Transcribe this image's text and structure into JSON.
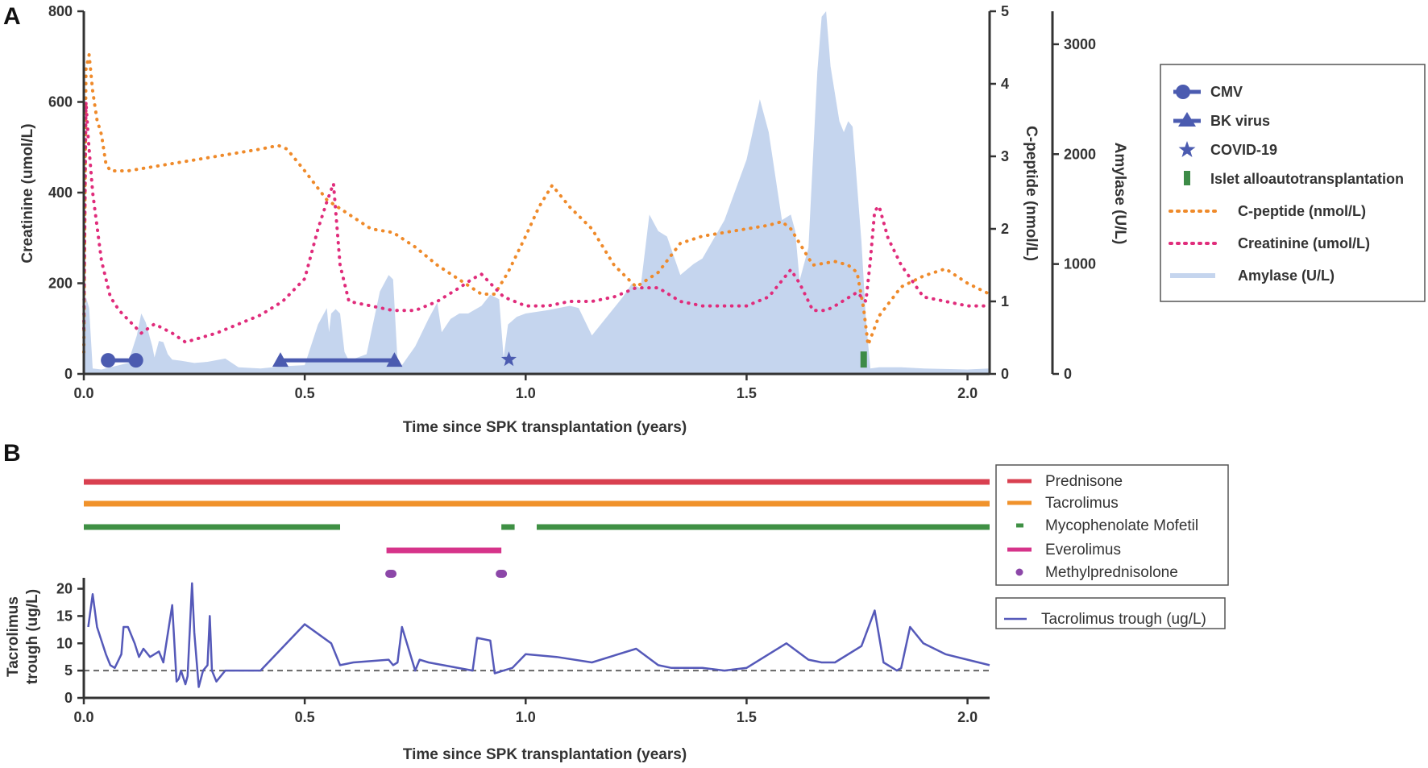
{
  "colors": {
    "amylase": "#c5d5ee",
    "cpeptide": "#ef8a2a",
    "creatinine": "#e02c7b",
    "event_blue": "#4b5bb0",
    "islet": "#3d8b47",
    "prednisone": "#d94050",
    "tacrolimus": "#f0922b",
    "mmf": "#3f9044",
    "everolimus": "#d6338a",
    "methylpred": "#8c47a8",
    "trough": "#5559b9",
    "threshold": "#666666"
  },
  "panel_a": {
    "label": "A",
    "xlabel": "Time since SPK transplantation (years)",
    "ylabel_left": "Creatinine (umol/L)",
    "ylabel_right1": "C-peptide (nmol/L)",
    "ylabel_right2": "Amylase (U/L)",
    "x_ticks": [
      "0.0",
      "0.5",
      "1.0",
      "1.5",
      "2.0"
    ],
    "y_left_ticks": [
      "0",
      "200",
      "400",
      "600",
      "800"
    ],
    "y_right1_ticks": [
      "0",
      "1",
      "2",
      "3",
      "4",
      "5"
    ],
    "y_right2_ticks": [
      "0",
      "1000",
      "2000",
      "3000"
    ],
    "legend": {
      "cmv": "CMV",
      "bk": "BK virus",
      "covid": "COVID-19",
      "islet": "Islet alloautotransplantation",
      "cpeptide": "C-peptide (nmol/L)",
      "creatinine": "Creatinine (umol/L)",
      "amylase": "Amylase (U/L)"
    }
  },
  "panel_b": {
    "label": "B",
    "xlabel": "Time since SPK transplantation (years)",
    "ylabel": "Tacrolimus trough (ug/L)",
    "ylabel_line1": "Tacrolimus",
    "ylabel_line2": "trough (ug/L)",
    "x_ticks": [
      "0.0",
      "0.5",
      "1.0",
      "1.5",
      "2.0"
    ],
    "y_ticks": [
      "0",
      "5",
      "10",
      "15",
      "20"
    ],
    "legend": {
      "prednisone": "Prednisone",
      "tacrolimus": "Tacrolimus",
      "mmf": "Mycophenolate Mofetil",
      "everolimus": "Everolimus",
      "methylpred": "Methylprednisolone",
      "trough": "Tacrolimus trough (ug/L)"
    }
  },
  "chart_data": [
    {
      "type": "area",
      "title": "A",
      "xlabel": "Time since SPK transplantation (years)",
      "xlim": [
        0,
        2.05
      ],
      "y_axes": {
        "creatinine": {
          "label": "Creatinine (umol/L)",
          "lim": [
            0,
            800
          ]
        },
        "cpeptide": {
          "label": "C-peptide (nmol/L)",
          "lim": [
            0,
            5
          ]
        },
        "amylase": {
          "label": "Amylase (U/L)",
          "lim": [
            0,
            3300
          ]
        }
      },
      "series": [
        {
          "name": "Amylase (U/L)",
          "kind": "area",
          "axis": "amylase",
          "x": [
            0,
            0.005,
            0.012,
            0.02,
            0.04,
            0.06,
            0.08,
            0.1,
            0.12,
            0.13,
            0.14,
            0.155,
            0.16,
            0.17,
            0.18,
            0.19,
            0.2,
            0.22,
            0.25,
            0.28,
            0.32,
            0.35,
            0.4,
            0.45,
            0.5,
            0.53,
            0.55,
            0.555,
            0.56,
            0.57,
            0.58,
            0.59,
            0.6,
            0.64,
            0.67,
            0.69,
            0.7,
            0.71,
            0.72,
            0.75,
            0.78,
            0.8,
            0.81,
            0.83,
            0.85,
            0.87,
            0.9,
            0.92,
            0.93,
            0.94,
            0.95,
            0.96,
            0.98,
            1.0,
            1.05,
            1.1,
            1.12,
            1.15,
            1.18,
            1.22,
            1.24,
            1.26,
            1.28,
            1.3,
            1.32,
            1.35,
            1.38,
            1.4,
            1.45,
            1.5,
            1.53,
            1.55,
            1.58,
            1.6,
            1.61,
            1.62,
            1.64,
            1.66,
            1.67,
            1.68,
            1.69,
            1.71,
            1.72,
            1.73,
            1.74,
            1.76,
            1.77,
            1.78,
            1.8,
            1.85,
            1.9,
            2.0,
            2.05
          ],
          "values": [
            0,
            700,
            600,
            50,
            40,
            60,
            80,
            100,
            350,
            550,
            470,
            250,
            150,
            300,
            290,
            180,
            130,
            120,
            100,
            110,
            140,
            60,
            50,
            70,
            80,
            450,
            600,
            380,
            550,
            590,
            550,
            200,
            120,
            180,
            750,
            900,
            860,
            120,
            80,
            250,
            500,
            650,
            380,
            500,
            550,
            550,
            620,
            720,
            700,
            680,
            150,
            450,
            520,
            550,
            580,
            620,
            600,
            350,
            500,
            700,
            820,
            780,
            1450,
            1300,
            1250,
            900,
            1000,
            1050,
            1400,
            1950,
            2500,
            2200,
            1400,
            1450,
            1300,
            850,
            1150,
            2750,
            3250,
            3300,
            2800,
            2300,
            2200,
            2300,
            2250,
            1200,
            500,
            50,
            60,
            60,
            50,
            40,
            50
          ]
        },
        {
          "name": "C-peptide (nmol/L)",
          "kind": "dotted-line",
          "axis": "cpeptide",
          "x": [
            0,
            0.005,
            0.012,
            0.02,
            0.03,
            0.04,
            0.05,
            0.06,
            0.1,
            0.2,
            0.3,
            0.4,
            0.44,
            0.46,
            0.5,
            0.55,
            0.6,
            0.65,
            0.7,
            0.75,
            0.8,
            0.85,
            0.9,
            0.93,
            0.96,
            1.0,
            1.03,
            1.06,
            1.1,
            1.15,
            1.2,
            1.25,
            1.3,
            1.35,
            1.4,
            1.45,
            1.5,
            1.55,
            1.58,
            1.6,
            1.65,
            1.7,
            1.73,
            1.75,
            1.765,
            1.775,
            1.8,
            1.85,
            1.9,
            1.95,
            2.0,
            2.05
          ],
          "values": [
            0.3,
            4.2,
            4.4,
            3.9,
            3.5,
            3.3,
            2.9,
            2.8,
            2.8,
            2.9,
            3.0,
            3.1,
            3.15,
            3.1,
            2.8,
            2.4,
            2.2,
            2.0,
            1.95,
            1.75,
            1.5,
            1.3,
            1.1,
            1.1,
            1.4,
            1.9,
            2.3,
            2.6,
            2.3,
            2.0,
            1.5,
            1.2,
            1.4,
            1.8,
            1.9,
            1.95,
            2.0,
            2.05,
            2.1,
            2.0,
            1.5,
            1.55,
            1.5,
            1.4,
            0.9,
            0.4,
            0.8,
            1.2,
            1.35,
            1.45,
            1.25,
            1.1
          ]
        },
        {
          "name": "Creatinine (umol/L)",
          "kind": "dotted-line",
          "axis": "creatinine",
          "x": [
            0,
            0.005,
            0.01,
            0.02,
            0.04,
            0.06,
            0.08,
            0.1,
            0.13,
            0.16,
            0.2,
            0.23,
            0.3,
            0.4,
            0.45,
            0.5,
            0.53,
            0.55,
            0.565,
            0.58,
            0.6,
            0.65,
            0.7,
            0.75,
            0.8,
            0.85,
            0.88,
            0.9,
            0.93,
            0.95,
            1.0,
            1.05,
            1.1,
            1.15,
            1.2,
            1.25,
            1.3,
            1.35,
            1.4,
            1.45,
            1.5,
            1.55,
            1.6,
            1.62,
            1.65,
            1.68,
            1.7,
            1.75,
            1.77,
            1.78,
            1.79,
            1.8,
            1.82,
            1.85,
            1.9,
            1.95,
            2.0,
            2.05
          ],
          "values": [
            100,
            600,
            520,
            400,
            250,
            170,
            140,
            120,
            90,
            110,
            90,
            70,
            90,
            130,
            160,
            210,
            320,
            380,
            420,
            240,
            160,
            150,
            140,
            140,
            160,
            190,
            210,
            220,
            190,
            170,
            150,
            150,
            160,
            160,
            170,
            190,
            190,
            160,
            150,
            150,
            150,
            170,
            230,
            200,
            140,
            140,
            150,
            180,
            160,
            250,
            360,
            370,
            300,
            240,
            170,
            160,
            150,
            150
          ]
        }
      ],
      "events": [
        {
          "name": "CMV",
          "marker": "circle",
          "start": 0.055,
          "end": 0.118,
          "y": 30
        },
        {
          "name": "BK virus",
          "marker": "triangle",
          "start": 0.445,
          "end": 0.703,
          "y": 30
        },
        {
          "name": "COVID-19",
          "marker": "star",
          "x": 0.962,
          "y": 30
        },
        {
          "name": "Islet alloautotransplantation",
          "marker": "bar",
          "x": 1.765,
          "y": 30
        }
      ]
    },
    {
      "type": "line",
      "title": "B",
      "xlabel": "Time since SPK transplantation (years)",
      "ylabel": "Tacrolimus trough (ug/L)",
      "xlim": [
        0,
        2.05
      ],
      "ylim": [
        0,
        22
      ],
      "threshold": 5,
      "treatments": [
        {
          "name": "Prednisone",
          "segments": [
            [
              0.0,
              2.05
            ]
          ]
        },
        {
          "name": "Tacrolimus",
          "segments": [
            [
              0.0,
              2.05
            ]
          ]
        },
        {
          "name": "Mycophenolate Mofetil",
          "segments": [
            [
              0.0,
              0.58
            ],
            [
              0.945,
              0.975
            ],
            [
              1.025,
              2.05
            ]
          ]
        },
        {
          "name": "Everolimus",
          "segments": [
            [
              0.685,
              0.945
            ]
          ]
        },
        {
          "name": "Methylprednisolone",
          "points": [
            0.695,
            0.945
          ]
        }
      ],
      "series": [
        {
          "name": "Tacrolimus trough (ug/L)",
          "x": [
            0.01,
            0.02,
            0.03,
            0.05,
            0.06,
            0.07,
            0.085,
            0.09,
            0.1,
            0.115,
            0.125,
            0.135,
            0.15,
            0.17,
            0.18,
            0.2,
            0.21,
            0.215,
            0.22,
            0.23,
            0.235,
            0.245,
            0.25,
            0.26,
            0.27,
            0.28,
            0.285,
            0.29,
            0.3,
            0.32,
            0.35,
            0.4,
            0.5,
            0.56,
            0.58,
            0.61,
            0.69,
            0.7,
            0.71,
            0.72,
            0.75,
            0.76,
            0.78,
            0.88,
            0.89,
            0.92,
            0.93,
            0.95,
            0.97,
            1.0,
            1.07,
            1.15,
            1.25,
            1.3,
            1.33,
            1.4,
            1.45,
            1.5,
            1.59,
            1.64,
            1.67,
            1.7,
            1.76,
            1.79,
            1.81,
            1.84,
            1.85,
            1.87,
            1.9,
            1.95,
            2.0,
            2.05
          ],
          "values": [
            13,
            19,
            13,
            8,
            6,
            5.5,
            8,
            13,
            13,
            10,
            7.5,
            9,
            7.5,
            8.5,
            6.5,
            17,
            3,
            3.5,
            5,
            2.5,
            4,
            21,
            12,
            2,
            5,
            6,
            15,
            5,
            3,
            5,
            5,
            5,
            13.5,
            10,
            6,
            6.5,
            7,
            6,
            6.5,
            13,
            5,
            7,
            6.5,
            5,
            11,
            10.5,
            4.5,
            5,
            5.5,
            8,
            7.5,
            6.5,
            9,
            6,
            5.5,
            5.5,
            5,
            5.5,
            10,
            7,
            6.5,
            6.5,
            9.5,
            16,
            6.5,
            5,
            5.5,
            13,
            10,
            8,
            7,
            6
          ]
        }
      ]
    }
  ]
}
